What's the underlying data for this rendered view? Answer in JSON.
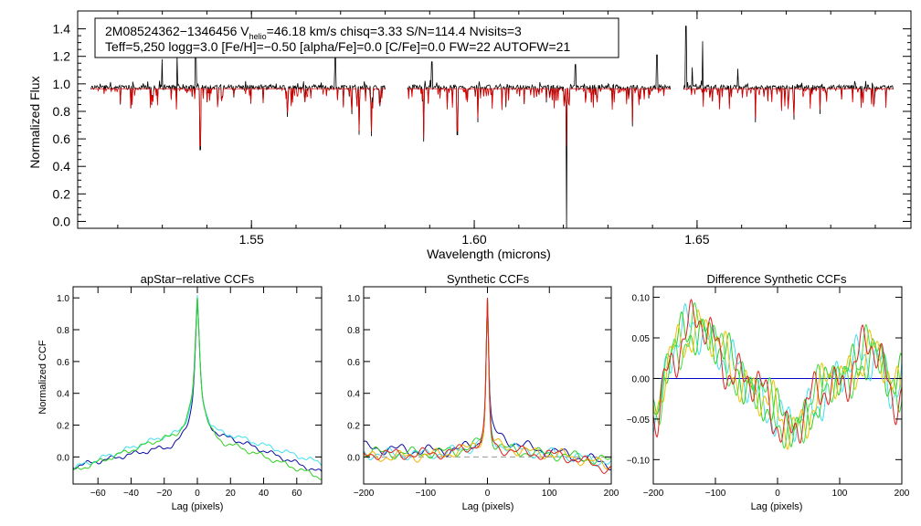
{
  "chart_data": [
    {
      "type": "line",
      "id": "spectrum",
      "xlabel": "Wavelength (microns)",
      "ylabel": "Normalized Flux",
      "xlim": [
        1.511,
        1.698
      ],
      "ylim": [
        -0.05,
        1.53
      ],
      "xticks": [
        "1.55",
        "1.60",
        "1.65"
      ],
      "yticks": [
        "0.0",
        "0.2",
        "0.4",
        "0.6",
        "0.8",
        "1.0",
        "1.2",
        "1.4"
      ],
      "legend_box": {
        "line1": {
          "prefix": "2M08524362−1346456  V",
          "subscript": "helio",
          "suffix": "=46.18 km/s  chisq=3.33  S/N=114.4  Nvisits=3"
        },
        "line2": "Teff=5,250 logg=3.0 [Fe/H]=−0.50 [alpha/Fe]=0.0 [C/Fe]=0.0 FW=22 AUTOFW=21"
      },
      "chips": [
        {
          "range": [
            1.514,
            1.58
          ]
        },
        {
          "range": [
            1.585,
            1.644
          ]
        },
        {
          "range": [
            1.647,
            1.694
          ]
        }
      ],
      "series": [
        {
          "name": "observed",
          "color": "#000000"
        },
        {
          "name": "model",
          "color": "#dd0000"
        }
      ],
      "features": [
        {
          "x": 1.5299,
          "y": 1.18
        },
        {
          "x": 1.5333,
          "y": 1.21
        },
        {
          "x": 1.5375,
          "y": 1.28
        },
        {
          "x": 1.5385,
          "y": 0.52
        },
        {
          "x": 1.5581,
          "y": 0.76
        },
        {
          "x": 1.5688,
          "y": 1.19
        },
        {
          "x": 1.5725,
          "y": 0.78
        },
        {
          "x": 1.5741,
          "y": 0.63
        },
        {
          "x": 1.5769,
          "y": 0.62
        },
        {
          "x": 1.5887,
          "y": 0.58
        },
        {
          "x": 1.5905,
          "y": 1.16
        },
        {
          "x": 1.5962,
          "y": 0.63
        },
        {
          "x": 1.6008,
          "y": 0.72
        },
        {
          "x": 1.6207,
          "y": -0.05
        },
        {
          "x": 1.6227,
          "y": 1.14
        },
        {
          "x": 1.6355,
          "y": 0.69
        },
        {
          "x": 1.641,
          "y": 1.21
        },
        {
          "x": 1.6475,
          "y": 1.42
        },
        {
          "x": 1.6489,
          "y": 1.12
        },
        {
          "x": 1.6512,
          "y": 1.31
        },
        {
          "x": 1.6591,
          "y": 1.11
        },
        {
          "x": 1.6631,
          "y": 0.72
        },
        {
          "x": 1.6717,
          "y": 0.74
        },
        {
          "x": 1.6776,
          "y": 0.78
        }
      ]
    },
    {
      "type": "line",
      "id": "apstar_ccf",
      "title": "apStar−relative CCFs",
      "xlabel": "Lag (pixels)",
      "ylabel": "Normalized CCF",
      "xlim": [
        -75,
        75
      ],
      "ylim": [
        -0.17,
        1.07
      ],
      "xticks": [
        -60,
        -40,
        -20,
        0,
        20,
        40,
        60
      ],
      "yticks": [
        "0.0",
        "0.2",
        "0.4",
        "0.6",
        "0.8",
        "1.0"
      ],
      "ytick_values": [
        0.0,
        0.2,
        0.4,
        0.6,
        0.8,
        1.0
      ],
      "series": [
        {
          "name": "navy",
          "color": "#0a0aa0",
          "y_at_minus75": -0.06,
          "y_at_minus20": 0.06,
          "y_at_plus20": 0.12,
          "y_at_plus75": -0.1
        },
        {
          "name": "cyan",
          "color": "#3fe0f0",
          "y_at_minus75": -0.07,
          "y_at_minus20": 0.13,
          "y_at_plus20": 0.14,
          "y_at_plus75": -0.04
        },
        {
          "name": "green",
          "color": "#2fd020",
          "y_at_minus75": -0.09,
          "y_at_minus20": 0.12,
          "y_at_plus20": 0.08,
          "y_at_plus75": -0.13
        }
      ]
    },
    {
      "type": "line",
      "id": "synthetic_ccf",
      "title": "Synthetic CCFs",
      "xlabel": "Lag (pixels)",
      "xlim": [
        -200,
        200
      ],
      "ylim": [
        -0.17,
        1.07
      ],
      "xticks": [
        -200,
        -100,
        0,
        100,
        200
      ],
      "yticks": [
        "0.0",
        "0.2",
        "0.4",
        "0.6",
        "0.8",
        "1.0"
      ],
      "ytick_values": [
        0.0,
        0.2,
        0.4,
        0.6,
        0.8,
        1.0
      ],
      "zero_line": {
        "y": 0.0,
        "style": "dashed",
        "color": "#999999"
      },
      "series": [
        {
          "name": "navy",
          "color": "#0a0aa0",
          "y_at_minus200": 0.06,
          "y_at_plus50": 0.17,
          "y_at_plus200": -0.05
        },
        {
          "name": "cyan",
          "color": "#3fe0f0",
          "y_at_minus200": 0.02,
          "y_at_plus50": 0.1,
          "y_at_plus200": -0.04
        },
        {
          "name": "green",
          "color": "#2fd020",
          "y_at_minus200": 0.03,
          "y_at_plus50": 0.08,
          "y_at_plus200": -0.03
        },
        {
          "name": "orange",
          "color": "#f0b400",
          "y_at_minus200": 0.0,
          "y_at_plus50": 0.09,
          "y_at_plus200": -0.06
        },
        {
          "name": "red",
          "color": "#e02020",
          "y_at_minus200": 0.02,
          "y_at_plus50": 0.07,
          "y_at_plus200": -0.08
        }
      ]
    },
    {
      "type": "line",
      "id": "difference_ccf",
      "title": "Difference Synthetic CCFs",
      "xlabel": "Lag (pixels)",
      "xlim": [
        -200,
        200
      ],
      "ylim": [
        -0.13,
        0.113
      ],
      "xticks": [
        -200,
        -100,
        0,
        100,
        200
      ],
      "yticks": [
        "0.10",
        "0.05",
        "0.00",
        "−0.05",
        "−0.10"
      ],
      "ytick_values": [
        0.1,
        0.05,
        0.0,
        -0.05,
        -0.1
      ],
      "zero_line": {
        "y": 0.0,
        "style": "solid",
        "color": "#0000cc"
      },
      "series": [
        {
          "name": "cyan",
          "color": "#3fe0f0"
        },
        {
          "name": "green",
          "color": "#2fd020"
        },
        {
          "name": "yellow",
          "color": "#f0c000"
        },
        {
          "name": "lime",
          "color": "#40e040"
        },
        {
          "name": "red",
          "color": "#e02020"
        }
      ]
    }
  ]
}
